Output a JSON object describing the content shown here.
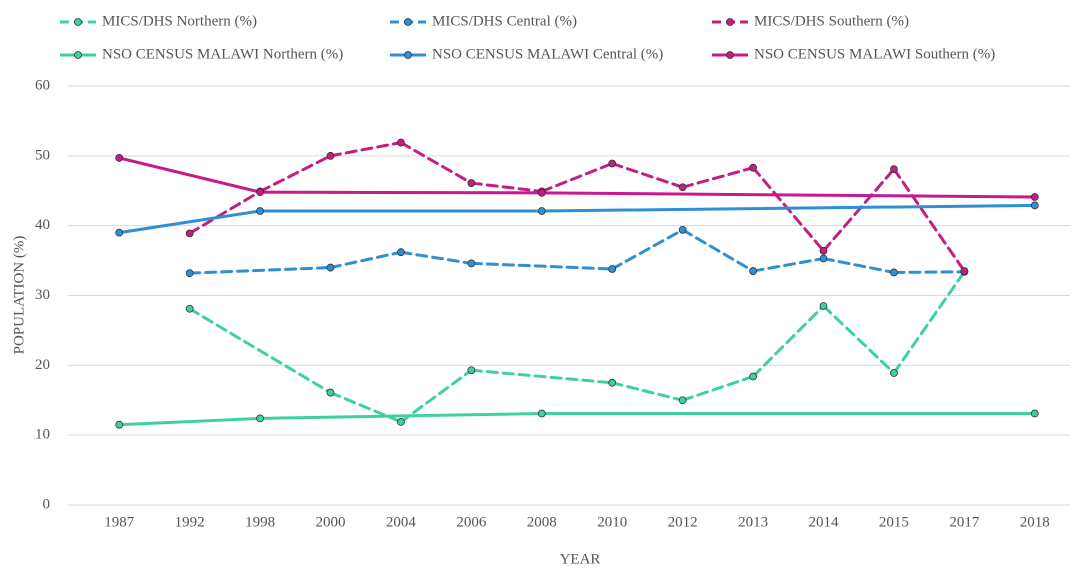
{
  "chart_data": {
    "type": "line",
    "x_label": "YEAR",
    "y_label": "POPULATION (%)",
    "categories": [
      "1987",
      "1992",
      "1998",
      "2000",
      "2004",
      "2006",
      "2008",
      "2010",
      "2012",
      "2013",
      "2014",
      "2015",
      "2017",
      "2018"
    ],
    "ylim": [
      0,
      60
    ],
    "yticks": [
      0,
      10,
      20,
      30,
      40,
      50,
      60
    ],
    "grid": true,
    "connect_gaps": true,
    "series": [
      {
        "name": "MICS/DHS Northern (%)",
        "color": "#3fd0a2",
        "dashed": true,
        "values": [
          null,
          28.1,
          null,
          16.1,
          11.9,
          19.3,
          null,
          17.5,
          15.0,
          18.4,
          28.5,
          18.9,
          33.4,
          null
        ]
      },
      {
        "name": "MICS/DHS Central (%)",
        "color": "#2f8fd5",
        "dashed": true,
        "values": [
          null,
          33.2,
          null,
          34.0,
          36.2,
          34.6,
          null,
          33.8,
          39.4,
          33.5,
          35.3,
          33.3,
          33.4,
          null
        ]
      },
      {
        "name": "MICS/DHS Southern (%)",
        "color": "#c2207f",
        "dashed": true,
        "values": [
          null,
          38.9,
          44.9,
          50.0,
          51.9,
          46.1,
          44.9,
          48.9,
          45.5,
          48.3,
          36.4,
          48.1,
          33.5,
          null
        ]
      },
      {
        "name": "NSO CENSUS MALAWI Northern (%)",
        "color": "#3fd0a2",
        "dashed": false,
        "values": [
          11.5,
          null,
          12.4,
          null,
          null,
          null,
          13.1,
          null,
          null,
          null,
          null,
          null,
          null,
          13.1
        ]
      },
      {
        "name": "NSO CENSUS MALAWI Central (%)",
        "color": "#2f8fd5",
        "dashed": false,
        "values": [
          39.0,
          null,
          42.1,
          null,
          null,
          null,
          42.1,
          null,
          null,
          null,
          null,
          null,
          null,
          42.9
        ]
      },
      {
        "name": "NSO CENSUS MALAWI Southern (%)",
        "color": "#c8178f",
        "dashed": false,
        "values": [
          49.7,
          null,
          44.8,
          null,
          null,
          null,
          44.7,
          null,
          null,
          null,
          null,
          null,
          null,
          44.1
        ]
      }
    ]
  }
}
